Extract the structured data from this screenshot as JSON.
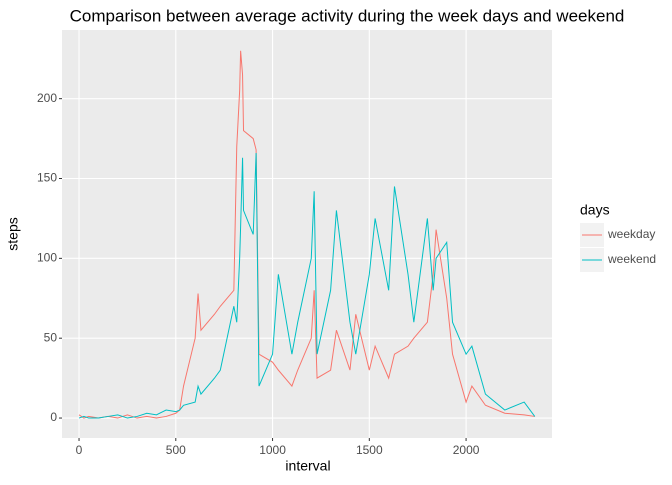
{
  "chart_data": {
    "type": "line",
    "title": "Comparison between average activity during the week days and weekend",
    "x_label": "interval",
    "y_label": "steps",
    "legend_title": "days",
    "legend_position": "right",
    "grid": true,
    "x": [
      0,
      25,
      50,
      100,
      150,
      200,
      250,
      300,
      350,
      400,
      450,
      500,
      520,
      540,
      600,
      615,
      630,
      700,
      730,
      800,
      815,
      830,
      835,
      845,
      850,
      900,
      915,
      930,
      1000,
      1030,
      1100,
      1130,
      1200,
      1215,
      1230,
      1300,
      1330,
      1400,
      1430,
      1500,
      1530,
      1600,
      1630,
      1700,
      1730,
      1800,
      1830,
      1845,
      1900,
      1930,
      2000,
      2030,
      2100,
      2200,
      2300,
      2355
    ],
    "series": [
      {
        "name": "weekday",
        "color": "#f8766d",
        "values": [
          2,
          0,
          1,
          0,
          1,
          0,
          2,
          0,
          1,
          0,
          1,
          3,
          5,
          20,
          50,
          78,
          55,
          65,
          70,
          80,
          170,
          205,
          230,
          215,
          180,
          175,
          168,
          40,
          35,
          30,
          20,
          30,
          50,
          80,
          25,
          30,
          55,
          30,
          65,
          30,
          45,
          25,
          40,
          45,
          50,
          60,
          90,
          118,
          75,
          40,
          10,
          20,
          8,
          3,
          2,
          1
        ]
      },
      {
        "name": "weekend",
        "color": "#00bfc4",
        "values": [
          0,
          1,
          0,
          0,
          1,
          2,
          0,
          1,
          3,
          2,
          5,
          4,
          5,
          8,
          10,
          20,
          15,
          25,
          30,
          70,
          60,
          100,
          120,
          163,
          130,
          115,
          166,
          20,
          40,
          90,
          40,
          60,
          100,
          142,
          40,
          80,
          130,
          60,
          40,
          90,
          125,
          80,
          145,
          90,
          60,
          125,
          80,
          100,
          110,
          60,
          40,
          45,
          15,
          5,
          10,
          1
        ]
      }
    ],
    "xlim": [
      -88,
      2444
    ],
    "xticks": [
      0,
      500,
      1000,
      1500,
      2000
    ],
    "ylim": [
      -12.5,
      243
    ],
    "yticks": [
      0,
      50,
      100,
      150,
      200
    ]
  }
}
